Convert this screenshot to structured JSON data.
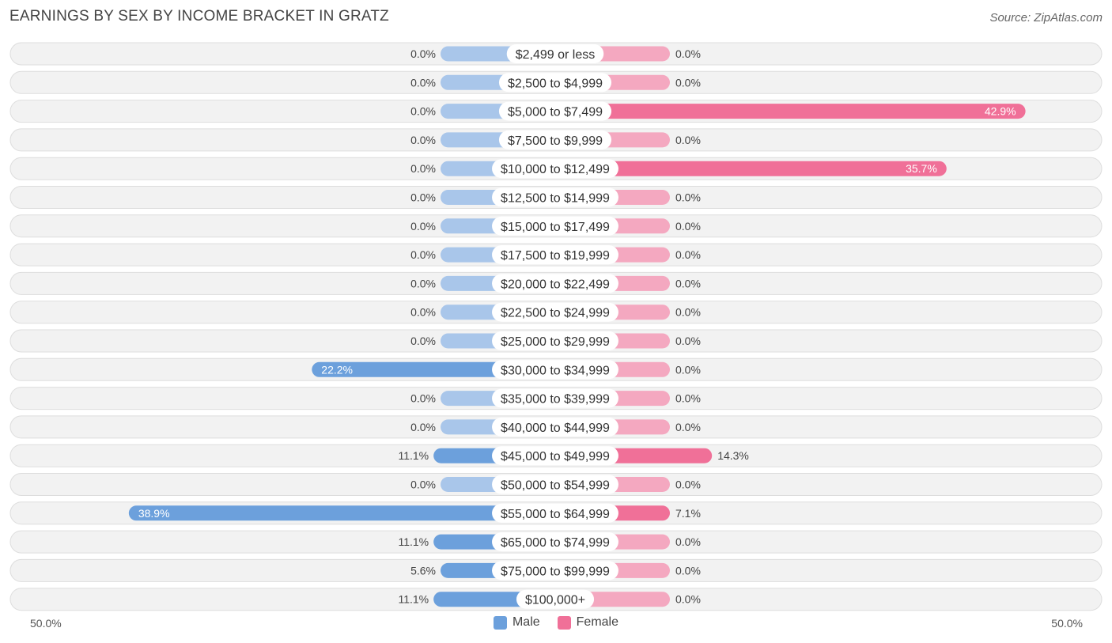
{
  "header": {
    "title": "EARNINGS BY SEX BY INCOME BRACKET IN GRATZ",
    "source": "Source: ZipAtlas.com"
  },
  "colors": {
    "male": "#6ca0dc",
    "male_light": "#a9c6ea",
    "female": "#f07098",
    "female_light": "#f4a8c0",
    "row_bg": "#f2f2f2",
    "row_border": "#dddddd"
  },
  "chart_data": {
    "type": "bar",
    "orientation": "horizontal-diverging",
    "title": "EARNINGS BY SEX BY INCOME BRACKET IN GRATZ",
    "axis_min_label": "50.0%",
    "axis_max_label": "50.0%",
    "xlim": [
      -50,
      50
    ],
    "legend_placement": "bottom-center",
    "categories": [
      "$2,499 or less",
      "$2,500 to $4,999",
      "$5,000 to $7,499",
      "$7,500 to $9,999",
      "$10,000 to $12,499",
      "$12,500 to $14,999",
      "$15,000 to $17,499",
      "$17,500 to $19,999",
      "$20,000 to $22,499",
      "$22,500 to $24,999",
      "$25,000 to $29,999",
      "$30,000 to $34,999",
      "$35,000 to $39,999",
      "$40,000 to $44,999",
      "$45,000 to $49,999",
      "$50,000 to $54,999",
      "$55,000 to $64,999",
      "$65,000 to $74,999",
      "$75,000 to $99,999",
      "$100,000+"
    ],
    "series": [
      {
        "name": "Male",
        "values": [
          0.0,
          0.0,
          0.0,
          0.0,
          0.0,
          0.0,
          0.0,
          0.0,
          0.0,
          0.0,
          0.0,
          22.2,
          0.0,
          0.0,
          11.1,
          0.0,
          38.9,
          11.1,
          5.6,
          11.1
        ],
        "labels": [
          "0.0%",
          "0.0%",
          "0.0%",
          "0.0%",
          "0.0%",
          "0.0%",
          "0.0%",
          "0.0%",
          "0.0%",
          "0.0%",
          "0.0%",
          "22.2%",
          "0.0%",
          "0.0%",
          "11.1%",
          "0.0%",
          "38.9%",
          "11.1%",
          "5.6%",
          "11.1%"
        ]
      },
      {
        "name": "Female",
        "values": [
          0.0,
          0.0,
          42.9,
          0.0,
          35.7,
          0.0,
          0.0,
          0.0,
          0.0,
          0.0,
          0.0,
          0.0,
          0.0,
          0.0,
          14.3,
          0.0,
          7.1,
          0.0,
          0.0,
          0.0
        ],
        "labels": [
          "0.0%",
          "0.0%",
          "42.9%",
          "0.0%",
          "35.7%",
          "0.0%",
          "0.0%",
          "0.0%",
          "0.0%",
          "0.0%",
          "0.0%",
          "0.0%",
          "0.0%",
          "0.0%",
          "14.3%",
          "0.0%",
          "7.1%",
          "0.0%",
          "0.0%",
          "0.0%"
        ]
      }
    ]
  }
}
